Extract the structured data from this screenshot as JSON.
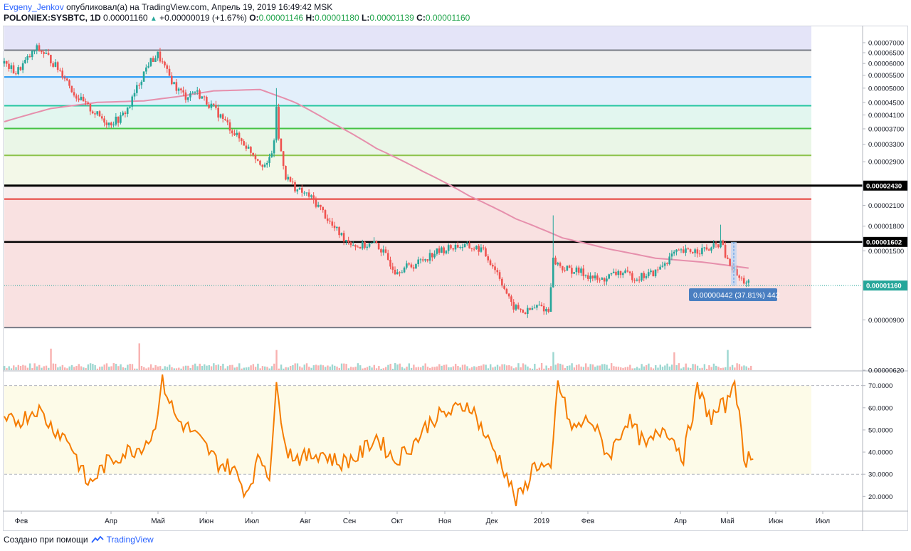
{
  "header": {
    "author": "Evgeny_Jenkov",
    "published_text": "опубликовал(а) на TradingView.com, Апрель 19, 2019 16:49:42 MSK",
    "symbol": "POLONIEX:SYSBTC, 1D",
    "last": "0.00001160",
    "change": "+0.00000019 (+1.67%)",
    "o_label": "O:",
    "o_value": "0.00001146",
    "h_label": "H:",
    "h_value": "0.00001180",
    "l_label": "L:",
    "l_value": "0.00001139",
    "c_label": "C:",
    "c_value": "0.00001160"
  },
  "footer": {
    "made_with": "Создано при помощи",
    "brand": "TradingView"
  },
  "colors": {
    "up": "#26a69a",
    "down": "#ef5350",
    "ma": "#e68fac",
    "rsi": "#f57c00",
    "black_line": "#000000",
    "red_line": "#e53935",
    "grey_line": "#787b86",
    "blue_line": "#2196f3",
    "teal_line": "#26c6a0",
    "green_line": "#43c243",
    "lime_line": "#8bc34a"
  },
  "chart_data": [
    {
      "type": "candlestick",
      "symbol": "POLONIEX:SYSBTC",
      "interval": "1D",
      "price_scale_ticks": [
        "0.00007000",
        "0.00006500",
        "0.00006000",
        "0.00005500",
        "0.00005000",
        "0.00004500",
        "0.00004100",
        "0.00003700",
        "0.00003300",
        "0.00002900",
        "0.00002100",
        "0.00001800",
        "0.00001500",
        "0.00000900",
        "0.00000620"
      ],
      "price_badges": [
        {
          "value": "0.00002430",
          "style": "dark"
        },
        {
          "value": "0.00001602",
          "style": "dark"
        },
        {
          "value": "0.00001160",
          "style": "green"
        }
      ],
      "fib_levels": [
        6.62e-05,
        5.43e-05,
        4.39e-05,
        3.71e-05,
        3.04e-05,
        2.43e-05,
        2.2e-05,
        1.602e-05,
        8.5e-06
      ],
      "band_colors": [
        "#e4e4f8",
        "#efefef",
        "#e3effb",
        "#e2f6ef",
        "#eaf6e7",
        "#f3f8e8",
        "#f7eded",
        "#f9e1e1",
        "#f9e1e1"
      ],
      "measure_label": "0.00000442 (37.81%) 442",
      "time_labels": [
        "Фев",
        "Апр",
        "Май",
        "Июн",
        "Июл",
        "Авг",
        "Сен",
        "Окт",
        "Ноя",
        "Дек",
        "2019",
        "Фев",
        "Апр",
        "Май",
        "Июн",
        "Июл"
      ],
      "price_path": [
        [
          0,
          6e-05
        ],
        [
          5,
          5.6e-05
        ],
        [
          10,
          6.2e-05
        ],
        [
          14,
          6.7e-05
        ],
        [
          18,
          6.4e-05
        ],
        [
          22,
          5.9e-05
        ],
        [
          26,
          5.45e-05
        ],
        [
          30,
          4.8e-05
        ],
        [
          35,
          4.4e-05
        ],
        [
          40,
          4.1e-05
        ],
        [
          45,
          3.85e-05
        ],
        [
          50,
          4e-05
        ],
        [
          54,
          4.4e-05
        ],
        [
          58,
          5.2e-05
        ],
        [
          62,
          6e-05
        ],
        [
          66,
          6.4e-05
        ],
        [
          70,
          5.6e-05
        ],
        [
          74,
          5e-05
        ],
        [
          78,
          4.7e-05
        ],
        [
          82,
          4.9e-05
        ],
        [
          86,
          4.6e-05
        ],
        [
          90,
          4.3e-05
        ],
        [
          95,
          3.9e-05
        ],
        [
          100,
          3.5e-05
        ],
        [
          105,
          3.2e-05
        ],
        [
          110,
          2.9e-05
        ],
        [
          113,
          2.8e-05
        ],
        [
          116,
          3.3e-05
        ],
        [
          117,
          4.4e-05
        ],
        [
          118,
          3.4e-05
        ],
        [
          121,
          2.6e-05
        ],
        [
          126,
          2.35e-05
        ],
        [
          131,
          2.25e-05
        ],
        [
          136,
          2.05e-05
        ],
        [
          141,
          1.8e-05
        ],
        [
          146,
          1.65e-05
        ],
        [
          152,
          1.55e-05
        ],
        [
          160,
          1.58e-05
        ],
        [
          168,
          1.3e-05
        ],
        [
          176,
          1.35e-05
        ],
        [
          185,
          1.48e-05
        ],
        [
          195,
          1.56e-05
        ],
        [
          205,
          1.52e-05
        ],
        [
          212,
          1.28e-05
        ],
        [
          218,
          1e-05
        ],
        [
          224,
          9.5e-06
        ],
        [
          230,
          1e-05
        ],
        [
          234,
          9.6e-06
        ],
        [
          236,
          1.4e-05
        ],
        [
          240,
          1.32e-05
        ],
        [
          248,
          1.28e-05
        ],
        [
          256,
          1.2e-05
        ],
        [
          264,
          1.28e-05
        ],
        [
          272,
          1.23e-05
        ],
        [
          280,
          1.28e-05
        ],
        [
          288,
          1.47e-05
        ],
        [
          296,
          1.5e-05
        ],
        [
          304,
          1.52e-05
        ],
        [
          308,
          1.6e-05
        ],
        [
          311,
          1.38e-05
        ],
        [
          316,
          1.22e-05
        ],
        [
          320,
          1.18e-05
        ]
      ],
      "moving_average_path": [
        [
          0,
          3.9e-05
        ],
        [
          20,
          4.3e-05
        ],
        [
          40,
          4.5e-05
        ],
        [
          60,
          4.55e-05
        ],
        [
          75,
          4.7e-05
        ],
        [
          90,
          4.9e-05
        ],
        [
          110,
          4.95e-05
        ],
        [
          125,
          4.5e-05
        ],
        [
          140,
          3.9e-05
        ],
        [
          160,
          3.2e-05
        ],
        [
          180,
          2.7e-05
        ],
        [
          200,
          2.25e-05
        ],
        [
          220,
          1.9e-05
        ],
        [
          240,
          1.65e-05
        ],
        [
          260,
          1.52e-05
        ],
        [
          280,
          1.42e-05
        ],
        [
          300,
          1.38e-05
        ],
        [
          320,
          1.32e-05
        ]
      ]
    },
    {
      "type": "line",
      "name": "RSI",
      "y_ticks": [
        "70.0000",
        "60.0000",
        "50.0000",
        "40.0000",
        "30.0000",
        "20.0000"
      ],
      "ylim": [
        14,
        76
      ],
      "bands": [
        30,
        70
      ],
      "x": [
        0,
        8,
        14,
        20,
        28,
        36,
        44,
        52,
        58,
        64,
        68,
        74,
        80,
        86,
        92,
        98,
        104,
        110,
        114,
        117,
        122,
        128,
        136,
        144,
        152,
        160,
        168,
        176,
        184,
        192,
        200,
        208,
        214,
        220,
        224,
        228,
        232,
        235,
        238,
        244,
        252,
        260,
        268,
        276,
        284,
        292,
        298,
        304,
        308,
        311,
        314,
        318,
        322
      ],
      "values": [
        53,
        55,
        60,
        52,
        45,
        25,
        35,
        40,
        42,
        48,
        72,
        55,
        50,
        43,
        35,
        33,
        22,
        38,
        30,
        68,
        40,
        37,
        40,
        35,
        38,
        47,
        36,
        44,
        55,
        58,
        62,
        45,
        35,
        18,
        24,
        35,
        33,
        30,
        72,
        50,
        55,
        38,
        55,
        42,
        52,
        38,
        68,
        55,
        60,
        62,
        75,
        36,
        40
      ]
    }
  ]
}
